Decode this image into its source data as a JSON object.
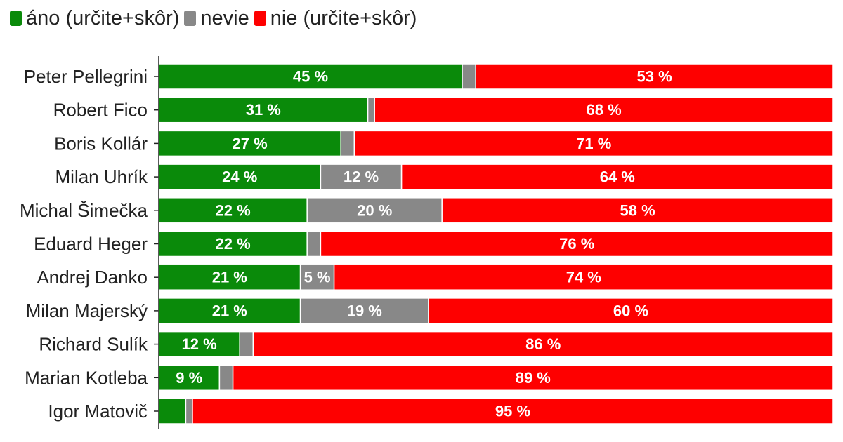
{
  "legend": [
    {
      "label": "áno (určite+skôr)",
      "color": "#0a8a0a"
    },
    {
      "label": "nevie",
      "color": "#888888"
    },
    {
      "label": "nie (určite+skôr)",
      "color": "#fe0000"
    }
  ],
  "chart_data": {
    "type": "bar",
    "orientation": "horizontal",
    "stacked": true,
    "categories": [
      "Peter Pellegrini",
      "Robert Fico",
      "Boris Kollár",
      "Milan Uhrík",
      "Michal Šimečka",
      "Eduard Heger",
      "Andrej Danko",
      "Milan Majerský",
      "Richard Sulík",
      "Marian Kotleba",
      "Igor Matovič"
    ],
    "series": [
      {
        "name": "áno (určite+skôr)",
        "color": "#0a8a0a",
        "values": [
          45,
          31,
          27,
          24,
          22,
          22,
          21,
          21,
          12,
          9,
          4
        ],
        "labels": [
          "45 %",
          "31 %",
          "27 %",
          "24 %",
          "22 %",
          "22 %",
          "21 %",
          "21 %",
          "12 %",
          "9 %",
          ""
        ]
      },
      {
        "name": "nevie",
        "color": "#888888",
        "values": [
          2,
          1,
          2,
          12,
          20,
          2,
          5,
          19,
          2,
          2,
          1
        ],
        "labels": [
          "",
          "",
          "",
          "12 %",
          "20 %",
          "",
          "5 %",
          "19 %",
          "",
          "",
          ""
        ]
      },
      {
        "name": "nie (určite+skôr)",
        "color": "#fe0000",
        "values": [
          53,
          68,
          71,
          64,
          58,
          76,
          74,
          60,
          86,
          89,
          95
        ],
        "labels": [
          "53 %",
          "68 %",
          "71 %",
          "64 %",
          "58 %",
          "76 %",
          "74 %",
          "60 %",
          "86 %",
          "89 %",
          "95 %"
        ]
      }
    ],
    "xlim": [
      0,
      100
    ],
    "grid": false,
    "legend_position": "top-left",
    "title": "",
    "xlabel": "",
    "ylabel": ""
  }
}
